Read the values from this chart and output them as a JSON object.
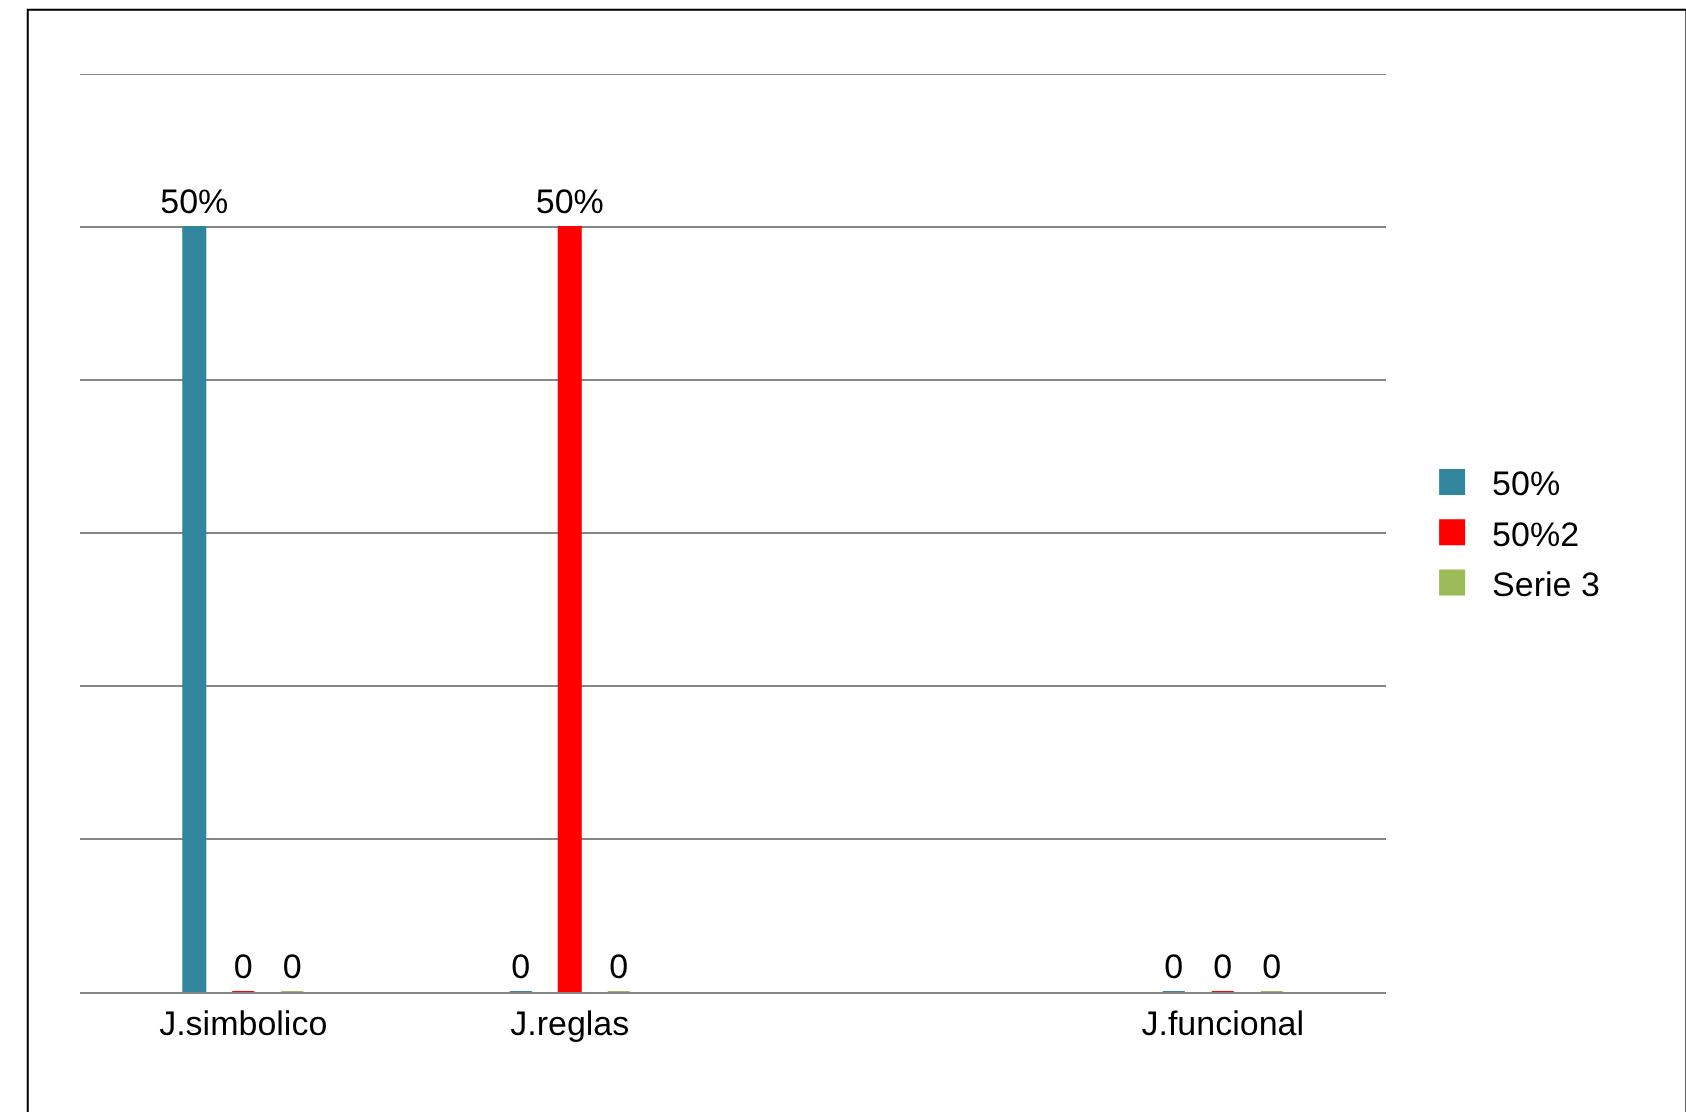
{
  "chart_data": {
    "type": "bar",
    "categories": [
      "J.simbolico",
      "J.reglas",
      null,
      "J.funcional"
    ],
    "series": [
      {
        "name": "50%",
        "color": "#31859c",
        "values": [
          50,
          0,
          null,
          0
        ],
        "value_labels": [
          "50%",
          "0",
          null,
          "0"
        ]
      },
      {
        "name": "50%2",
        "color": "#ff0000",
        "values": [
          0,
          50,
          null,
          0
        ],
        "value_labels": [
          "0",
          "50%",
          null,
          "0"
        ]
      },
      {
        "name": "Serie 3",
        "color": "#9bbb59",
        "values": [
          0,
          0,
          null,
          0
        ],
        "value_labels": [
          "0",
          "0",
          null,
          "0"
        ]
      }
    ],
    "ylim": [
      0,
      60
    ],
    "yticks": [
      {
        "value": 0,
        "label": null
      },
      {
        "value": 10,
        "label": null
      },
      {
        "value": 20,
        "label": null
      },
      {
        "value": 30,
        "label": null
      },
      {
        "value": 40,
        "label": null
      },
      {
        "value": 50,
        "label": null
      },
      {
        "value": 60,
        "label": null
      }
    ],
    "grid": "y",
    "legend": "right",
    "tick_labels": "x"
  }
}
